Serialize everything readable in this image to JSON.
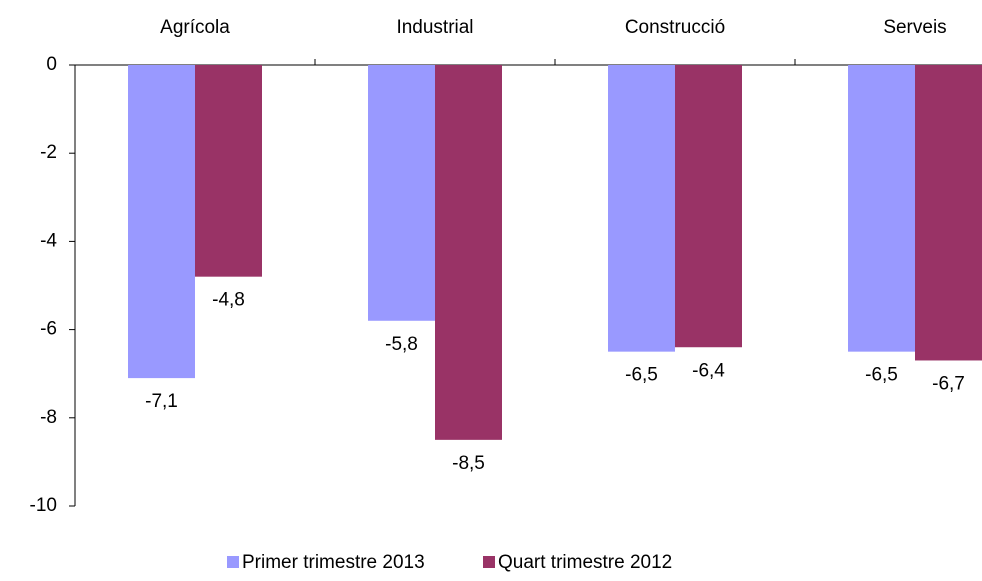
{
  "chart_data": {
    "type": "bar",
    "categories": [
      "Agrícola",
      "Industrial",
      "Construcció",
      "Serveis"
    ],
    "series": [
      {
        "name": "Primer trimestre 2013",
        "color": "#9999ff",
        "values": [
          -7.1,
          -5.8,
          -6.5,
          -6.5
        ],
        "value_labels": [
          "-7,1",
          "-5,8",
          "-6,5",
          "-6,5"
        ]
      },
      {
        "name": "Quart trimestre 2012",
        "color": "#993366",
        "values": [
          -4.8,
          -8.5,
          -6.4,
          -6.7
        ],
        "value_labels": [
          "-4,8",
          "-8,5",
          "-6,4",
          "-6,7"
        ]
      }
    ],
    "ylim": [
      -10,
      0
    ],
    "yticks": [
      0,
      -2,
      -4,
      -6,
      -8,
      -10
    ],
    "grid": false
  }
}
